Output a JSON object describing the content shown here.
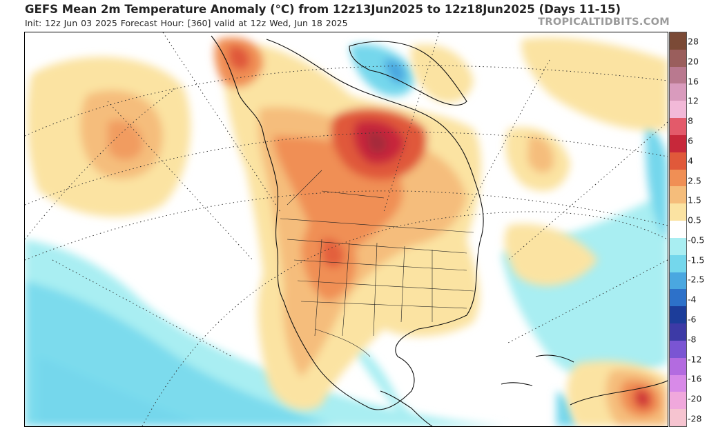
{
  "header": {
    "title": "GEFS Mean 2m Temperature Anomaly (°C) from 12z13Jun2025 to 12z18Jun2025 (Days 11-15)",
    "subtitle": "Init: 12z Jun 03 2025   Forecast Hour: [360]   valid at 12z Wed, Jun 18 2025",
    "credit": "TROPICALTIDBITS.COM"
  },
  "legend": {
    "labels": [
      "28",
      "20",
      "16",
      "12",
      "8",
      "6",
      "4",
      "2.5",
      "1.5",
      "0.5",
      "-0.5",
      "-1.5",
      "-2.5",
      "-4",
      "-6",
      "-8",
      "-12",
      "-16",
      "-20",
      "-28"
    ],
    "colors": [
      "#7b4a36",
      "#9a5e5c",
      "#b9798f",
      "#d99bbd",
      "#f2b9d8",
      "#e35a6a",
      "#c7283a",
      "#e0593a",
      "#f08f55",
      "#f5bd7b",
      "#fbe3a2",
      "#ffffff",
      "#a9eef2",
      "#74d7ec",
      "#4aa7e0",
      "#2d71c9",
      "#1c3d9a",
      "#3d3aa6",
      "#7a55d3",
      "#b36be0",
      "#d88ae8",
      "#f0a8dc",
      "#f6c4d0"
    ]
  },
  "map": {
    "features": [
      "ocean-cool-band",
      "north-america-warm-anomaly",
      "canada-hotspot",
      "central-us-hotspot",
      "greenland-cool",
      "south-america-hotspot"
    ]
  }
}
